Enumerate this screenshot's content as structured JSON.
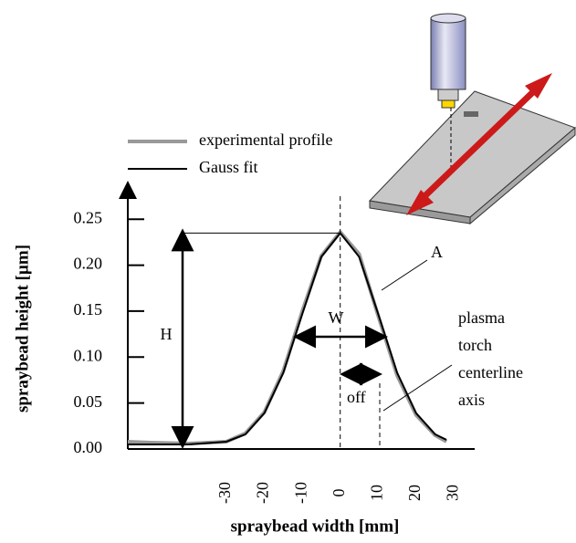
{
  "chart_data": {
    "type": "line",
    "xlabel": "spraybead width [mm]",
    "ylabel": "spraybead height [µm]",
    "x": [
      -56,
      -50,
      -40,
      -30,
      -25,
      -20,
      -15,
      -10,
      -5,
      0,
      5,
      10,
      15,
      20,
      25,
      28
    ],
    "series": [
      {
        "name": "experimental profile",
        "color": "#999999",
        "width": 4,
        "values": [
          0.008,
          0.007,
          0.006,
          0.008,
          0.017,
          0.04,
          0.085,
          0.15,
          0.21,
          0.236,
          0.212,
          0.145,
          0.08,
          0.037,
          0.015,
          0.008
        ]
      },
      {
        "name": "Gauss fit",
        "color": "#000000",
        "width": 2,
        "values": [
          0.005,
          0.005,
          0.005,
          0.008,
          0.016,
          0.039,
          0.083,
          0.147,
          0.209,
          0.235,
          0.209,
          0.147,
          0.083,
          0.039,
          0.016,
          0.01
        ]
      }
    ],
    "xlim": [
      -56,
      34
    ],
    "ylim": [
      0,
      0.28
    ],
    "xticks": [
      -30,
      -20,
      -10,
      0,
      10,
      20,
      30
    ],
    "yticks": [
      {
        "value": 0,
        "label": "0.00"
      },
      0.05,
      {
        "value": 0.1,
        "label": "0.10"
      },
      0.15,
      {
        "value": 0.2,
        "label": "0.20"
      },
      0.25
    ],
    "legend": "top-left",
    "annotations": {
      "height": "H",
      "width": "W",
      "area": "A",
      "offset": "off",
      "axis_note": [
        "plasma",
        "torch",
        "centerline",
        "axis"
      ]
    }
  }
}
